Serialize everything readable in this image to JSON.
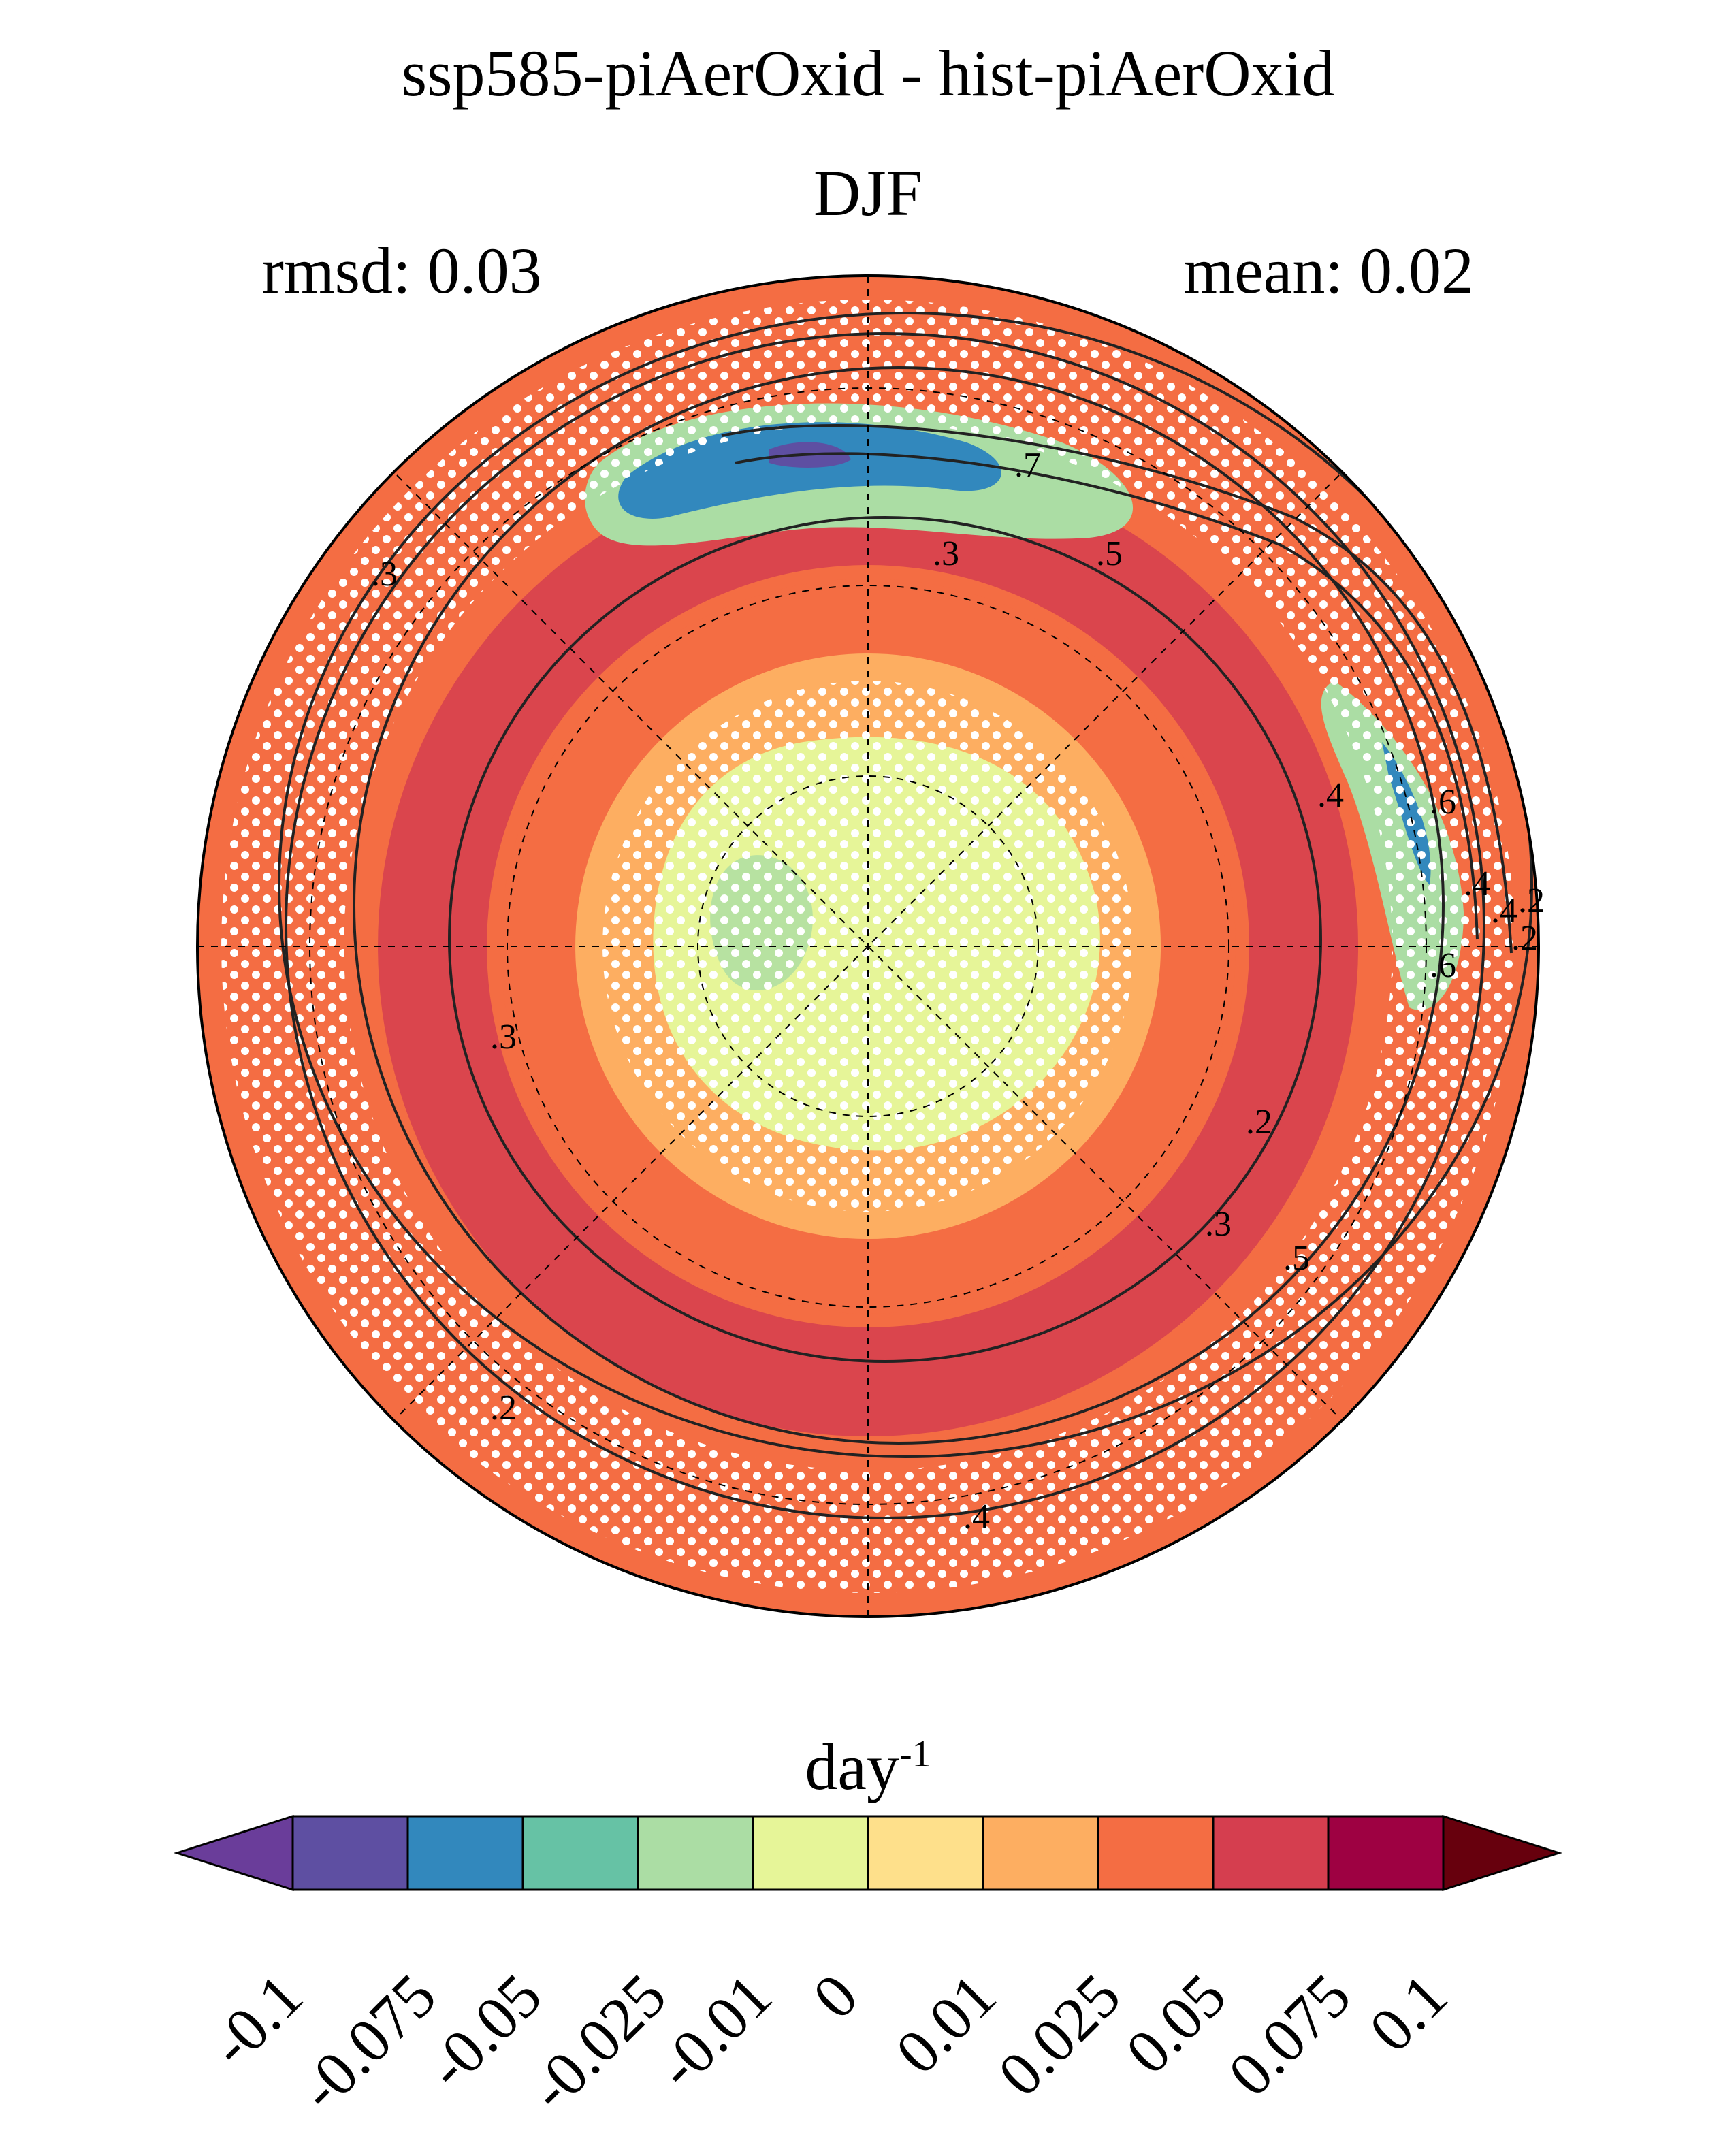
{
  "title": {
    "line1": "ssp585-piAerOxid - hist-piAerOxid",
    "line2": "DJF"
  },
  "stats": {
    "rmsd": "rmsd: 0.03",
    "mean": "mean: 0.02"
  },
  "map": {
    "projection": "north-polar-stereographic",
    "background_color": "#f46d43",
    "contour_labels": [
      ".7",
      ".3",
      ".5",
      ".3",
      ".3",
      ".4",
      ".2",
      ".3",
      ".5",
      ".2",
      ".4",
      ".6",
      ".4",
      ".2",
      ".6",
      ".4",
      ".2"
    ]
  },
  "colorbar": {
    "units_base": "day",
    "units_exp": "-1",
    "colors": [
      "#5e4fa2",
      "#3288bd",
      "#66c2a5",
      "#abdda4",
      "#e6f598",
      "#fee08b",
      "#fdae61",
      "#f46d43",
      "#d53e4f",
      "#9e0142"
    ],
    "low_extend_color": "#6a3d9a",
    "high_extend_color": "#67000d",
    "ticks": [
      "-0.1",
      "-0.075",
      "-0.05",
      "-0.025",
      "-0.01",
      "0",
      "0.01",
      "0.025",
      "0.05",
      "0.075",
      "0.1"
    ]
  }
}
